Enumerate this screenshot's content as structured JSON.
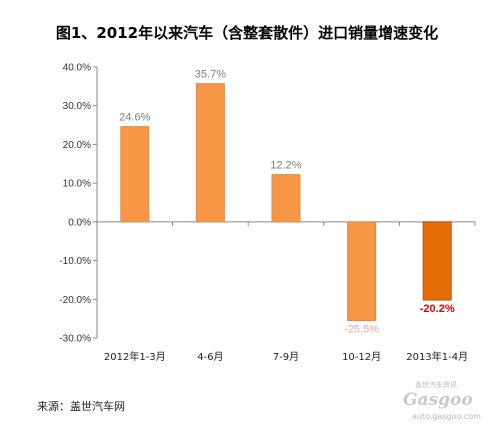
{
  "colors": {
    "bar": "#F79646",
    "bar_edge": "#E38A3F",
    "bar_highlight": "#E36C09",
    "bar_highlight_edge": "#B85508",
    "label_default": "#7F7F7F",
    "label_negative": "#F2A2A2",
    "label_highlight": "#E00000",
    "axis": "#888888",
    "title": "#000000"
  },
  "chart_data": {
    "type": "bar",
    "title": "图1、2012年以来汽车（含整套散件）进口销量增速变化",
    "xlabel": "",
    "ylabel": "",
    "categories": [
      "2012年1-3月",
      "4-6月",
      "7-9月",
      "10-12月",
      "2013年1-4月"
    ],
    "values": [
      24.6,
      35.7,
      12.2,
      -25.5,
      -20.2
    ],
    "value_labels": [
      "24.6%",
      "35.7%",
      "12.2%",
      "-25.5%",
      "-20.2%"
    ],
    "highlight_index": 4,
    "ylim": [
      -30,
      40
    ],
    "y_ticks": [
      40,
      30,
      20,
      10,
      0,
      -10,
      -20,
      -30
    ],
    "y_tick_labels": [
      "40.0%",
      "30.0%",
      "20.0%",
      "10.0%",
      "0.0%",
      "-10.0%",
      "-20.0%",
      "-30.0%"
    ],
    "grid": false,
    "legend": "none"
  },
  "source": "来源：盖世汽车网",
  "watermark": {
    "cn": "盖世汽车资讯",
    "logo": "Gasgoo",
    "url": "auto.gasgoo.com"
  }
}
